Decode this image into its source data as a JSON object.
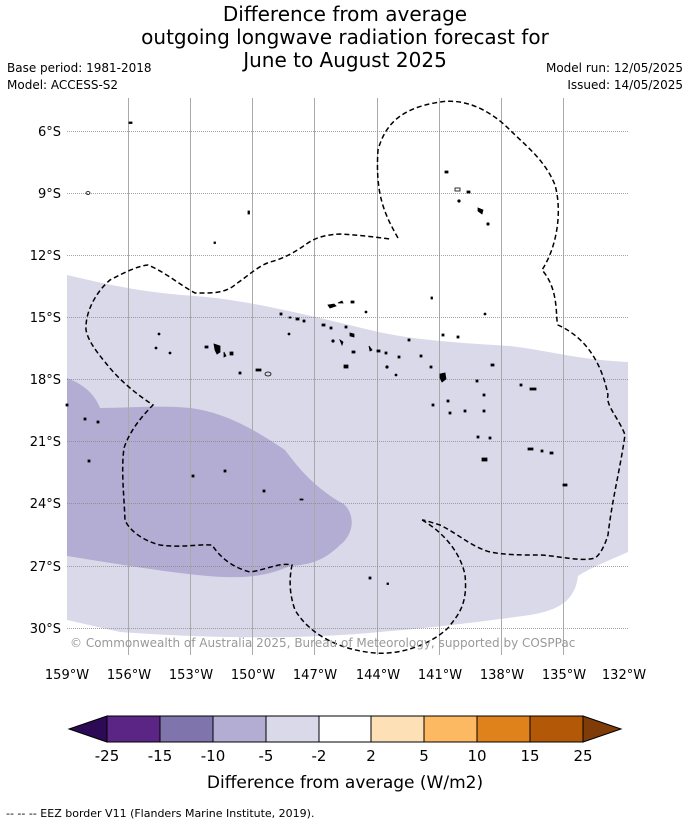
{
  "title": {
    "line1": "Difference from average",
    "line2": "outgoing longwave radiation forecast for",
    "line3": "June to August 2025"
  },
  "meta": {
    "base_period": "Base period: 1981-2018",
    "model": "Model: ACCESS-S2",
    "model_run": "Model run: 12/05/2025",
    "issued": "Issued: 14/05/2025"
  },
  "map": {
    "lat_labels": [
      "6°S",
      "9°S",
      "12°S",
      "15°S",
      "18°S",
      "21°S",
      "24°S",
      "27°S",
      "30°S"
    ],
    "lon_labels": [
      "159°W",
      "156°W",
      "153°W",
      "150°W",
      "147°W",
      "144°W",
      "141°W",
      "138°W",
      "135°W",
      "132°W"
    ],
    "copyright": "© Commonwealth of Australia 2025, Bureau of Meteorology, supported by COSPPac",
    "regions": [
      {
        "category": "-5 to -2",
        "color": "#d9d9ea"
      },
      {
        "category": "-10 to -5",
        "color": "#b3acd3"
      }
    ]
  },
  "colorbar": {
    "label": "Difference from average (W/m2)",
    "ticks": [
      "-25",
      "-15",
      "-10",
      "-5",
      "-2",
      "2",
      "5",
      "10",
      "15",
      "25"
    ],
    "colors": [
      "#2d0a55",
      "#5b2585",
      "#8074ad",
      "#b3acd3",
      "#d9d9ea",
      "#ffffff",
      "#fde0b6",
      "#fdb962",
      "#e0821c",
      "#b35806",
      "#7f3b08"
    ]
  },
  "footer": "--  --  -- EEZ border V11 (Flanders Marine Institute, 2019)."
}
